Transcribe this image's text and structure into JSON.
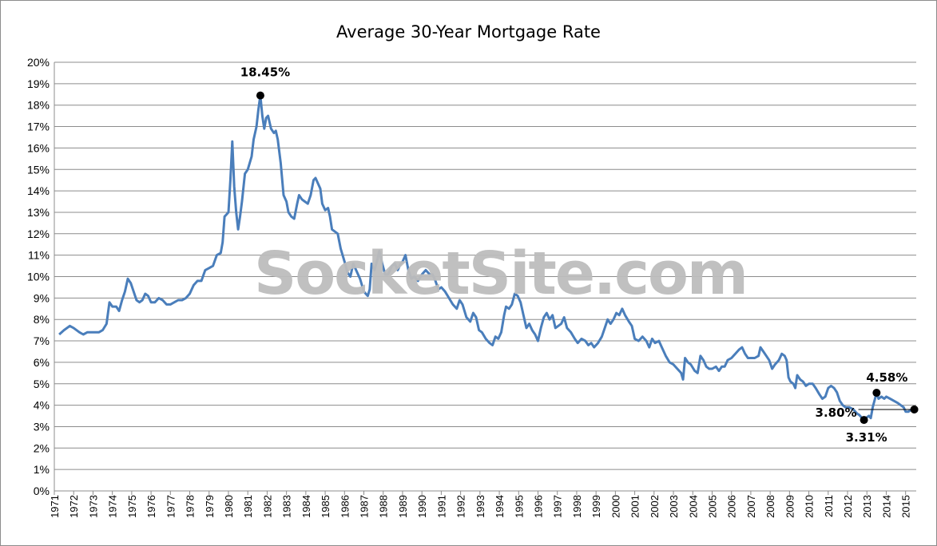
{
  "chart_data": {
    "type": "line",
    "title": "Average 30-Year Mortgage Rate",
    "xlabel": "",
    "ylabel": "",
    "ylim": [
      0,
      20
    ],
    "xlim": [
      1971.25,
      2015.45
    ],
    "grid": "horizontal",
    "y_ticks": [
      "0%",
      "1%",
      "2%",
      "3%",
      "4%",
      "5%",
      "6%",
      "7%",
      "8%",
      "9%",
      "10%",
      "11%",
      "12%",
      "13%",
      "14%",
      "15%",
      "16%",
      "17%",
      "18%",
      "19%",
      "20%"
    ],
    "x_ticks": [
      "1971",
      "1972",
      "1973",
      "1974",
      "1975",
      "1976",
      "1977",
      "1978",
      "1979",
      "1980",
      "1981",
      "1982",
      "1983",
      "1984",
      "1985",
      "1986",
      "1987",
      "1988",
      "1989",
      "1990",
      "1991",
      "1992",
      "1993",
      "1994",
      "1995",
      "1996",
      "1997",
      "1998",
      "1999",
      "2000",
      "2001",
      "2002",
      "2003",
      "2004",
      "2005",
      "2006",
      "2007",
      "2008",
      "2009",
      "2010",
      "2011",
      "2012",
      "2013",
      "2014",
      "2015"
    ],
    "series": [
      {
        "color": "#4a7ebb",
        "points": [
          [
            1971.25,
            7.3
          ],
          [
            1971.5,
            7.5
          ],
          [
            1971.8,
            7.7
          ],
          [
            1972.0,
            7.6
          ],
          [
            1972.3,
            7.4
          ],
          [
            1972.5,
            7.3
          ],
          [
            1972.7,
            7.4
          ],
          [
            1973.0,
            7.4
          ],
          [
            1973.3,
            7.4
          ],
          [
            1973.5,
            7.5
          ],
          [
            1973.7,
            7.8
          ],
          [
            1973.85,
            8.8
          ],
          [
            1974.0,
            8.6
          ],
          [
            1974.2,
            8.6
          ],
          [
            1974.35,
            8.4
          ],
          [
            1974.5,
            8.9
          ],
          [
            1974.65,
            9.3
          ],
          [
            1974.8,
            9.9
          ],
          [
            1974.95,
            9.7
          ],
          [
            1975.1,
            9.3
          ],
          [
            1975.25,
            8.9
          ],
          [
            1975.4,
            8.8
          ],
          [
            1975.55,
            8.9
          ],
          [
            1975.7,
            9.2
          ],
          [
            1975.85,
            9.1
          ],
          [
            1976.0,
            8.8
          ],
          [
            1976.2,
            8.8
          ],
          [
            1976.4,
            9.0
          ],
          [
            1976.6,
            8.9
          ],
          [
            1976.8,
            8.7
          ],
          [
            1977.0,
            8.7
          ],
          [
            1977.2,
            8.8
          ],
          [
            1977.4,
            8.9
          ],
          [
            1977.6,
            8.9
          ],
          [
            1977.8,
            9.0
          ],
          [
            1978.0,
            9.2
          ],
          [
            1978.2,
            9.6
          ],
          [
            1978.4,
            9.8
          ],
          [
            1978.6,
            9.8
          ],
          [
            1978.8,
            10.3
          ],
          [
            1979.0,
            10.4
          ],
          [
            1979.2,
            10.5
          ],
          [
            1979.4,
            11.0
          ],
          [
            1979.6,
            11.1
          ],
          [
            1979.7,
            11.6
          ],
          [
            1979.8,
            12.8
          ],
          [
            1979.9,
            12.9
          ],
          [
            1980.0,
            13.0
          ],
          [
            1980.1,
            14.5
          ],
          [
            1980.2,
            16.3
          ],
          [
            1980.3,
            14.2
          ],
          [
            1980.4,
            13.0
          ],
          [
            1980.5,
            12.2
          ],
          [
            1980.6,
            12.8
          ],
          [
            1980.7,
            13.5
          ],
          [
            1980.85,
            14.8
          ],
          [
            1981.0,
            15.0
          ],
          [
            1981.1,
            15.3
          ],
          [
            1981.2,
            15.6
          ],
          [
            1981.3,
            16.4
          ],
          [
            1981.45,
            17.0
          ],
          [
            1981.55,
            17.8
          ],
          [
            1981.65,
            18.45
          ],
          [
            1981.75,
            17.5
          ],
          [
            1981.85,
            16.9
          ],
          [
            1981.95,
            17.4
          ],
          [
            1982.05,
            17.5
          ],
          [
            1982.2,
            16.9
          ],
          [
            1982.35,
            16.7
          ],
          [
            1982.45,
            16.8
          ],
          [
            1982.55,
            16.4
          ],
          [
            1982.7,
            15.3
          ],
          [
            1982.85,
            13.8
          ],
          [
            1983.0,
            13.5
          ],
          [
            1983.1,
            13.0
          ],
          [
            1983.25,
            12.8
          ],
          [
            1983.4,
            12.7
          ],
          [
            1983.55,
            13.4
          ],
          [
            1983.65,
            13.8
          ],
          [
            1983.8,
            13.6
          ],
          [
            1983.95,
            13.5
          ],
          [
            1984.1,
            13.4
          ],
          [
            1984.25,
            13.8
          ],
          [
            1984.4,
            14.5
          ],
          [
            1984.5,
            14.6
          ],
          [
            1984.65,
            14.3
          ],
          [
            1984.75,
            14.1
          ],
          [
            1984.85,
            13.4
          ],
          [
            1985.0,
            13.1
          ],
          [
            1985.15,
            13.2
          ],
          [
            1985.25,
            12.8
          ],
          [
            1985.35,
            12.2
          ],
          [
            1985.5,
            12.1
          ],
          [
            1985.65,
            12.0
          ],
          [
            1985.8,
            11.3
          ],
          [
            1986.0,
            10.7
          ],
          [
            1986.15,
            10.2
          ],
          [
            1986.3,
            10.0
          ],
          [
            1986.45,
            10.6
          ],
          [
            1986.6,
            10.3
          ],
          [
            1986.8,
            9.9
          ],
          [
            1987.0,
            9.3
          ],
          [
            1987.2,
            9.1
          ],
          [
            1987.3,
            9.4
          ],
          [
            1987.4,
            10.6
          ],
          [
            1987.55,
            10.3
          ],
          [
            1987.7,
            10.8
          ],
          [
            1987.8,
            11.2
          ],
          [
            1987.95,
            10.6
          ],
          [
            1988.1,
            10.1
          ],
          [
            1988.25,
            10.1
          ],
          [
            1988.45,
            10.5
          ],
          [
            1988.6,
            10.6
          ],
          [
            1988.75,
            10.3
          ],
          [
            1988.9,
            10.6
          ],
          [
            1989.0,
            10.7
          ],
          [
            1989.15,
            11.0
          ],
          [
            1989.3,
            10.3
          ],
          [
            1989.45,
            9.9
          ],
          [
            1989.6,
            10.0
          ],
          [
            1989.8,
            9.8
          ],
          [
            1990.0,
            10.1
          ],
          [
            1990.2,
            10.3
          ],
          [
            1990.4,
            10.1
          ],
          [
            1990.55,
            10.1
          ],
          [
            1990.7,
            9.8
          ],
          [
            1990.85,
            9.4
          ],
          [
            1991.0,
            9.5
          ],
          [
            1991.2,
            9.3
          ],
          [
            1991.4,
            9.0
          ],
          [
            1991.6,
            8.7
          ],
          [
            1991.8,
            8.5
          ],
          [
            1991.95,
            8.9
          ],
          [
            1992.1,
            8.7
          ],
          [
            1992.3,
            8.1
          ],
          [
            1992.5,
            7.9
          ],
          [
            1992.65,
            8.3
          ],
          [
            1992.8,
            8.1
          ],
          [
            1992.95,
            7.5
          ],
          [
            1993.1,
            7.4
          ],
          [
            1993.3,
            7.1
          ],
          [
            1993.5,
            6.9
          ],
          [
            1993.65,
            6.8
          ],
          [
            1993.8,
            7.2
          ],
          [
            1993.95,
            7.1
          ],
          [
            1994.1,
            7.4
          ],
          [
            1994.25,
            8.2
          ],
          [
            1994.35,
            8.6
          ],
          [
            1994.5,
            8.5
          ],
          [
            1994.65,
            8.7
          ],
          [
            1994.8,
            9.2
          ],
          [
            1994.95,
            9.1
          ],
          [
            1995.1,
            8.8
          ],
          [
            1995.25,
            8.2
          ],
          [
            1995.4,
            7.6
          ],
          [
            1995.55,
            7.8
          ],
          [
            1995.7,
            7.5
          ],
          [
            1995.85,
            7.3
          ],
          [
            1996.0,
            7.0
          ],
          [
            1996.15,
            7.6
          ],
          [
            1996.3,
            8.1
          ],
          [
            1996.45,
            8.3
          ],
          [
            1996.6,
            8.0
          ],
          [
            1996.75,
            8.2
          ],
          [
            1996.9,
            7.6
          ],
          [
            1997.05,
            7.7
          ],
          [
            1997.2,
            7.8
          ],
          [
            1997.35,
            8.1
          ],
          [
            1997.5,
            7.6
          ],
          [
            1997.7,
            7.4
          ],
          [
            1997.9,
            7.1
          ],
          [
            1998.05,
            6.9
          ],
          [
            1998.25,
            7.1
          ],
          [
            1998.45,
            7.0
          ],
          [
            1998.6,
            6.8
          ],
          [
            1998.75,
            6.9
          ],
          [
            1998.9,
            6.7
          ],
          [
            1999.1,
            6.9
          ],
          [
            1999.3,
            7.2
          ],
          [
            1999.45,
            7.6
          ],
          [
            1999.6,
            8.0
          ],
          [
            1999.75,
            7.8
          ],
          [
            1999.9,
            8.0
          ],
          [
            2000.05,
            8.3
          ],
          [
            2000.2,
            8.2
          ],
          [
            2000.35,
            8.5
          ],
          [
            2000.5,
            8.2
          ],
          [
            2000.7,
            7.9
          ],
          [
            2000.85,
            7.7
          ],
          [
            2001.0,
            7.1
          ],
          [
            2001.2,
            7.0
          ],
          [
            2001.4,
            7.2
          ],
          [
            2001.6,
            7.0
          ],
          [
            2001.75,
            6.7
          ],
          [
            2001.9,
            7.1
          ],
          [
            2002.05,
            6.9
          ],
          [
            2002.25,
            7.0
          ],
          [
            2002.4,
            6.7
          ],
          [
            2002.6,
            6.3
          ],
          [
            2002.8,
            6.0
          ],
          [
            2003.0,
            5.9
          ],
          [
            2003.2,
            5.7
          ],
          [
            2003.4,
            5.5
          ],
          [
            2003.5,
            5.2
          ],
          [
            2003.6,
            6.2
          ],
          [
            2003.75,
            6.0
          ],
          [
            2003.9,
            5.9
          ],
          [
            2004.1,
            5.6
          ],
          [
            2004.25,
            5.5
          ],
          [
            2004.4,
            6.3
          ],
          [
            2004.55,
            6.1
          ],
          [
            2004.7,
            5.8
          ],
          [
            2004.85,
            5.7
          ],
          [
            2005.0,
            5.7
          ],
          [
            2005.2,
            5.8
          ],
          [
            2005.35,
            5.6
          ],
          [
            2005.5,
            5.8
          ],
          [
            2005.65,
            5.8
          ],
          [
            2005.8,
            6.1
          ],
          [
            2006.0,
            6.2
          ],
          [
            2006.2,
            6.4
          ],
          [
            2006.4,
            6.6
          ],
          [
            2006.55,
            6.7
          ],
          [
            2006.7,
            6.4
          ],
          [
            2006.85,
            6.2
          ],
          [
            2007.0,
            6.2
          ],
          [
            2007.2,
            6.2
          ],
          [
            2007.4,
            6.3
          ],
          [
            2007.5,
            6.7
          ],
          [
            2007.65,
            6.5
          ],
          [
            2007.8,
            6.3
          ],
          [
            2007.95,
            6.1
          ],
          [
            2008.1,
            5.7
          ],
          [
            2008.25,
            5.9
          ],
          [
            2008.45,
            6.1
          ],
          [
            2008.6,
            6.4
          ],
          [
            2008.75,
            6.3
          ],
          [
            2008.85,
            6.1
          ],
          [
            2008.95,
            5.3
          ],
          [
            2009.05,
            5.1
          ],
          [
            2009.2,
            5.0
          ],
          [
            2009.3,
            4.8
          ],
          [
            2009.4,
            5.4
          ],
          [
            2009.55,
            5.2
          ],
          [
            2009.7,
            5.1
          ],
          [
            2009.85,
            4.9
          ],
          [
            2010.0,
            5.0
          ],
          [
            2010.2,
            5.0
          ],
          [
            2010.35,
            4.8
          ],
          [
            2010.55,
            4.5
          ],
          [
            2010.7,
            4.3
          ],
          [
            2010.85,
            4.4
          ],
          [
            2011.0,
            4.8
          ],
          [
            2011.15,
            4.9
          ],
          [
            2011.3,
            4.8
          ],
          [
            2011.45,
            4.6
          ],
          [
            2011.6,
            4.2
          ],
          [
            2011.75,
            4.0
          ],
          [
            2011.9,
            3.9
          ],
          [
            2012.1,
            3.9
          ],
          [
            2012.3,
            3.8
          ],
          [
            2012.5,
            3.6
          ],
          [
            2012.6,
            3.55
          ],
          [
            2012.75,
            3.4
          ],
          [
            2012.85,
            3.31
          ],
          [
            2012.95,
            3.4
          ],
          [
            2013.1,
            3.5
          ],
          [
            2013.2,
            3.4
          ],
          [
            2013.3,
            3.9
          ],
          [
            2013.45,
            4.4
          ],
          [
            2013.5,
            4.58
          ],
          [
            2013.6,
            4.3
          ],
          [
            2013.75,
            4.4
          ],
          [
            2013.9,
            4.3
          ],
          [
            2014.0,
            4.4
          ],
          [
            2014.2,
            4.3
          ],
          [
            2014.4,
            4.2
          ],
          [
            2014.6,
            4.1
          ],
          [
            2014.75,
            4.0
          ],
          [
            2014.9,
            3.9
          ],
          [
            2015.0,
            3.7
          ],
          [
            2015.15,
            3.7
          ],
          [
            2015.3,
            3.8
          ],
          [
            2015.45,
            3.8
          ]
        ]
      }
    ],
    "annotations": [
      {
        "text": "18.45%",
        "x": 1981.65,
        "y": 18.45
      },
      {
        "text": "3.31%",
        "x": 2012.85,
        "y": 3.31
      },
      {
        "text": "4.58%",
        "x": 2013.5,
        "y": 4.58
      },
      {
        "text": "3.80%",
        "x": 2015.45,
        "y": 3.8
      }
    ]
  },
  "watermark": "SocketSite.com"
}
